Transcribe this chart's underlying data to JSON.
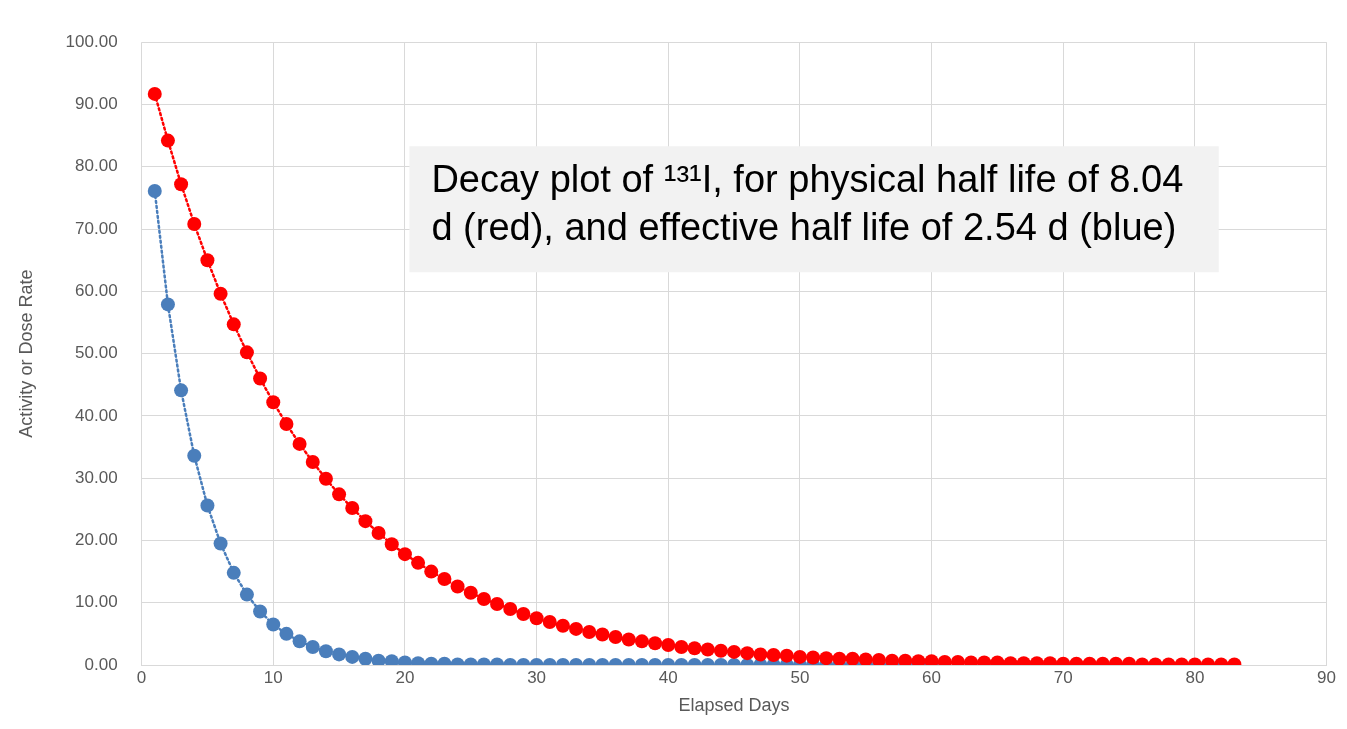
{
  "chart_data": {
    "type": "line",
    "title": "Decay plot of ¹³¹I, for physical half life of 8.04 d (red), and effective half life of 2.54 d (blue)",
    "xlabel": "Elapsed Days",
    "ylabel": "Activity or Dose Rate",
    "x": [
      1,
      2,
      3,
      4,
      5,
      6,
      7,
      8,
      9,
      10,
      11,
      12,
      13,
      14,
      15,
      16,
      17,
      18,
      19,
      20,
      21,
      22,
      23,
      24,
      25,
      26,
      27,
      28,
      29,
      30,
      31,
      32,
      33,
      34,
      35,
      36,
      37,
      38,
      39,
      40,
      41,
      42,
      43,
      44,
      45,
      46,
      47,
      48,
      49,
      50,
      51,
      52,
      53,
      54,
      55,
      56,
      57,
      58,
      59,
      60,
      61,
      62,
      63,
      64,
      65,
      66,
      67,
      68,
      69,
      70,
      71,
      72,
      73,
      74,
      75,
      76,
      77,
      78,
      79,
      80,
      81,
      82,
      83
    ],
    "series": [
      {
        "color": "#ff0000",
        "values": [
          91.7,
          84.2,
          77.2,
          70.8,
          65.0,
          59.6,
          54.7,
          50.2,
          46.0,
          42.2,
          38.7,
          35.5,
          32.6,
          29.9,
          27.4,
          25.2,
          23.1,
          21.2,
          19.4,
          17.8,
          16.4,
          15.0,
          13.8,
          12.6,
          11.6,
          10.6,
          9.8,
          9.0,
          8.2,
          7.5,
          6.9,
          6.3,
          5.8,
          5.3,
          4.9,
          4.5,
          4.1,
          3.8,
          3.5,
          3.2,
          2.9,
          2.7,
          2.5,
          2.3,
          2.1,
          1.9,
          1.7,
          1.6,
          1.5,
          1.3,
          1.2,
          1.1,
          1.0,
          1.0,
          0.9,
          0.8,
          0.7,
          0.7,
          0.6,
          0.6,
          0.5,
          0.5,
          0.4,
          0.4,
          0.4,
          0.3,
          0.3,
          0.3,
          0.3,
          0.2,
          0.2,
          0.2,
          0.2,
          0.2,
          0.2,
          0.1,
          0.1,
          0.1,
          0.1,
          0.1,
          0.1,
          0.1,
          0.1
        ]
      },
      {
        "color": "#4a7ebb",
        "values": [
          76.1,
          57.9,
          44.1,
          33.6,
          25.6,
          19.5,
          14.8,
          11.3,
          8.6,
          6.5,
          5.0,
          3.8,
          2.9,
          2.2,
          1.7,
          1.3,
          1.0,
          0.7,
          0.6,
          0.4,
          0.3,
          0.2,
          0.2,
          0.1,
          0.1,
          0.1,
          0.1,
          0.0,
          0.0,
          0.0,
          0.0,
          0.0,
          0.0,
          0.0,
          0.0,
          0.0,
          0.0,
          0.0,
          0.0,
          0.0,
          0.0,
          0.0,
          0.0,
          0.0,
          0.0,
          0.0,
          0.0,
          0.0,
          0.0,
          0.0,
          0.0,
          0.0,
          0.0,
          0.0,
          0.0,
          0.0,
          0.0,
          0.0,
          0.0,
          0.0,
          null,
          null,
          null,
          null,
          null,
          null,
          null,
          null,
          null,
          null,
          null,
          null,
          null,
          null,
          null,
          null,
          null,
          null,
          null,
          null,
          null,
          null,
          null
        ]
      }
    ],
    "xlim": [
      0,
      90
    ],
    "xticks": [
      0,
      10,
      20,
      30,
      40,
      50,
      60,
      70,
      80,
      90
    ],
    "ylim": [
      0,
      100
    ],
    "yticks": [
      {
        "value": 0,
        "label": "0.00"
      },
      {
        "value": 10,
        "label": "10.00"
      },
      {
        "value": 20,
        "label": "20.00"
      },
      {
        "value": 30,
        "label": "30.00"
      },
      {
        "value": 40,
        "label": "40.00"
      },
      {
        "value": 50,
        "label": "50.00"
      },
      {
        "value": 60,
        "label": "60.00"
      },
      {
        "value": 70,
        "label": "70.00"
      },
      {
        "value": 80,
        "label": "80.00"
      },
      {
        "value": 90,
        "label": "90.00"
      },
      {
        "value": 100,
        "label": "100.00"
      }
    ],
    "grid": true,
    "legend": false,
    "marker": "circle",
    "line_style": "dotted"
  }
}
